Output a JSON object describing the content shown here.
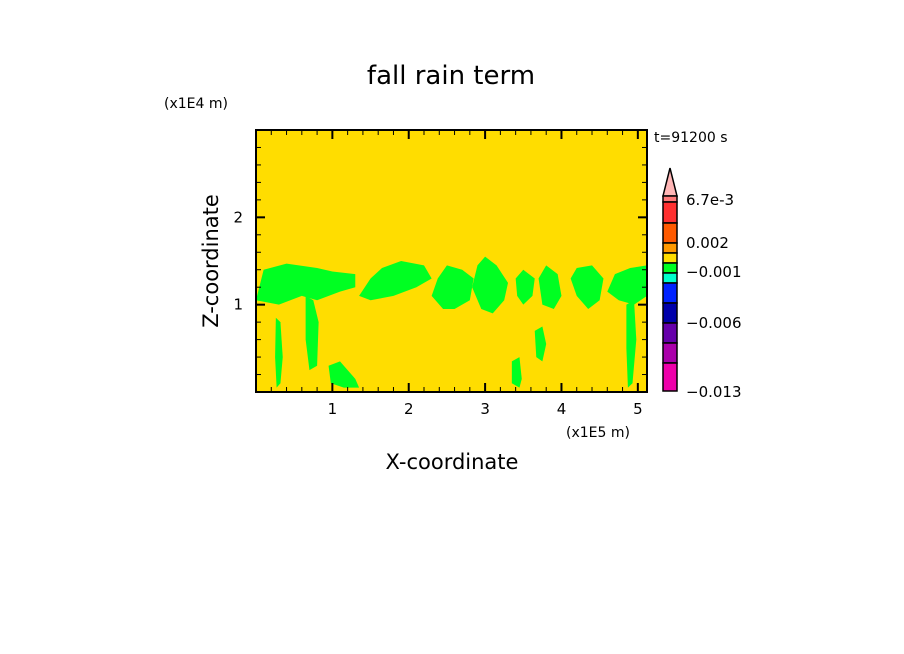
{
  "chart_data": {
    "type": "heatmap",
    "title": "fall rain term",
    "xlabel": "X-coordinate",
    "ylabel": "Z-coordinate",
    "x_unit": "(x1E5 m)",
    "y_unit": "(x1E4 m)",
    "time_label": "t=91200 s",
    "xlim": [
      0,
      5.12
    ],
    "ylim": [
      0,
      3.0
    ],
    "x_ticks": [
      1,
      2,
      3,
      4,
      5
    ],
    "x_tick_labels": [
      "1",
      "2",
      "3",
      "4",
      "5"
    ],
    "y_ticks": [
      1,
      2
    ],
    "y_tick_labels": [
      "1",
      "2"
    ],
    "minor_tick_step": 0.2,
    "background_level_color": "#FFDD00",
    "feature_color": "#00FF22",
    "feature_regions": [
      [
        [
          0.0,
          1.05
        ],
        [
          0.1,
          1.4
        ],
        [
          0.4,
          1.47
        ],
        [
          0.8,
          1.42
        ],
        [
          1.0,
          1.38
        ],
        [
          1.3,
          1.35
        ],
        [
          1.3,
          1.2
        ],
        [
          1.1,
          1.15
        ],
        [
          0.8,
          1.05
        ],
        [
          0.6,
          1.1
        ],
        [
          0.3,
          1.0
        ],
        [
          0.0,
          1.05
        ]
      ],
      [
        [
          1.35,
          1.1
        ],
        [
          1.5,
          1.3
        ],
        [
          1.65,
          1.42
        ],
        [
          1.9,
          1.5
        ],
        [
          2.2,
          1.45
        ],
        [
          2.3,
          1.3
        ],
        [
          2.1,
          1.2
        ],
        [
          1.8,
          1.1
        ],
        [
          1.5,
          1.05
        ]
      ],
      [
        [
          2.3,
          1.1
        ],
        [
          2.38,
          1.3
        ],
        [
          2.5,
          1.45
        ],
        [
          2.7,
          1.4
        ],
        [
          2.85,
          1.3
        ],
        [
          2.8,
          1.05
        ],
        [
          2.6,
          0.95
        ],
        [
          2.45,
          0.95
        ]
      ],
      [
        [
          2.83,
          1.2
        ],
        [
          2.9,
          1.45
        ],
        [
          3.0,
          1.55
        ],
        [
          3.15,
          1.45
        ],
        [
          3.3,
          1.25
        ],
        [
          3.25,
          1.05
        ],
        [
          3.1,
          0.9
        ],
        [
          2.95,
          0.95
        ]
      ],
      [
        [
          3.4,
          1.3
        ],
        [
          3.5,
          1.4
        ],
        [
          3.65,
          1.3
        ],
        [
          3.62,
          1.1
        ],
        [
          3.5,
          1.0
        ],
        [
          3.42,
          1.1
        ]
      ],
      [
        [
          3.7,
          1.3
        ],
        [
          3.8,
          1.45
        ],
        [
          3.95,
          1.35
        ],
        [
          4.0,
          1.1
        ],
        [
          3.9,
          0.95
        ],
        [
          3.75,
          1.0
        ]
      ],
      [
        [
          4.12,
          1.3
        ],
        [
          4.2,
          1.42
        ],
        [
          4.4,
          1.45
        ],
        [
          4.55,
          1.3
        ],
        [
          4.5,
          1.05
        ],
        [
          4.35,
          0.95
        ],
        [
          4.2,
          1.1
        ]
      ],
      [
        [
          4.6,
          1.15
        ],
        [
          4.7,
          1.35
        ],
        [
          4.9,
          1.42
        ],
        [
          5.12,
          1.45
        ],
        [
          5.12,
          1.1
        ],
        [
          4.95,
          1.0
        ],
        [
          4.75,
          1.05
        ]
      ],
      [
        [
          0.26,
          0.85
        ],
        [
          0.32,
          0.8
        ],
        [
          0.35,
          0.4
        ],
        [
          0.32,
          0.1
        ],
        [
          0.27,
          0.05
        ],
        [
          0.25,
          0.4
        ]
      ],
      [
        [
          0.65,
          1.1
        ],
        [
          0.75,
          1.05
        ],
        [
          0.82,
          0.8
        ],
        [
          0.8,
          0.3
        ],
        [
          0.7,
          0.25
        ],
        [
          0.65,
          0.6
        ]
      ],
      [
        [
          0.95,
          0.3
        ],
        [
          1.1,
          0.35
        ],
        [
          1.3,
          0.15
        ],
        [
          1.35,
          0.05
        ],
        [
          1.15,
          0.05
        ],
        [
          0.98,
          0.1
        ]
      ],
      [
        [
          3.35,
          0.35
        ],
        [
          3.45,
          0.4
        ],
        [
          3.48,
          0.15
        ],
        [
          3.45,
          0.05
        ],
        [
          3.35,
          0.1
        ]
      ],
      [
        [
          3.65,
          0.7
        ],
        [
          3.75,
          0.75
        ],
        [
          3.8,
          0.55
        ],
        [
          3.75,
          0.35
        ],
        [
          3.67,
          0.4
        ]
      ],
      [
        [
          4.85,
          1.0
        ],
        [
          4.95,
          1.05
        ],
        [
          4.98,
          0.6
        ],
        [
          4.93,
          0.1
        ],
        [
          4.87,
          0.05
        ],
        [
          4.85,
          0.5
        ]
      ]
    ],
    "colorbar": {
      "overflow_color": "#FFB6B6",
      "levels_top_to_bottom": [
        "#FF7A7A",
        "#FF3030",
        "#FF5A00",
        "#FF9900",
        "#FFDD00",
        "#00FF22",
        "#00FFCC",
        "#0022FF",
        "#0000AA",
        "#6600AA",
        "#AA00AA",
        "#EE00AA"
      ],
      "labels": [
        {
          "text": "6.7e-3",
          "value": 0.0067
        },
        {
          "text": "0.002",
          "value": 0.002
        },
        {
          "text": "−0.001",
          "value": -0.001
        },
        {
          "text": "−0.006",
          "value": -0.006
        },
        {
          "text": "−0.013",
          "value": -0.013
        }
      ]
    }
  }
}
